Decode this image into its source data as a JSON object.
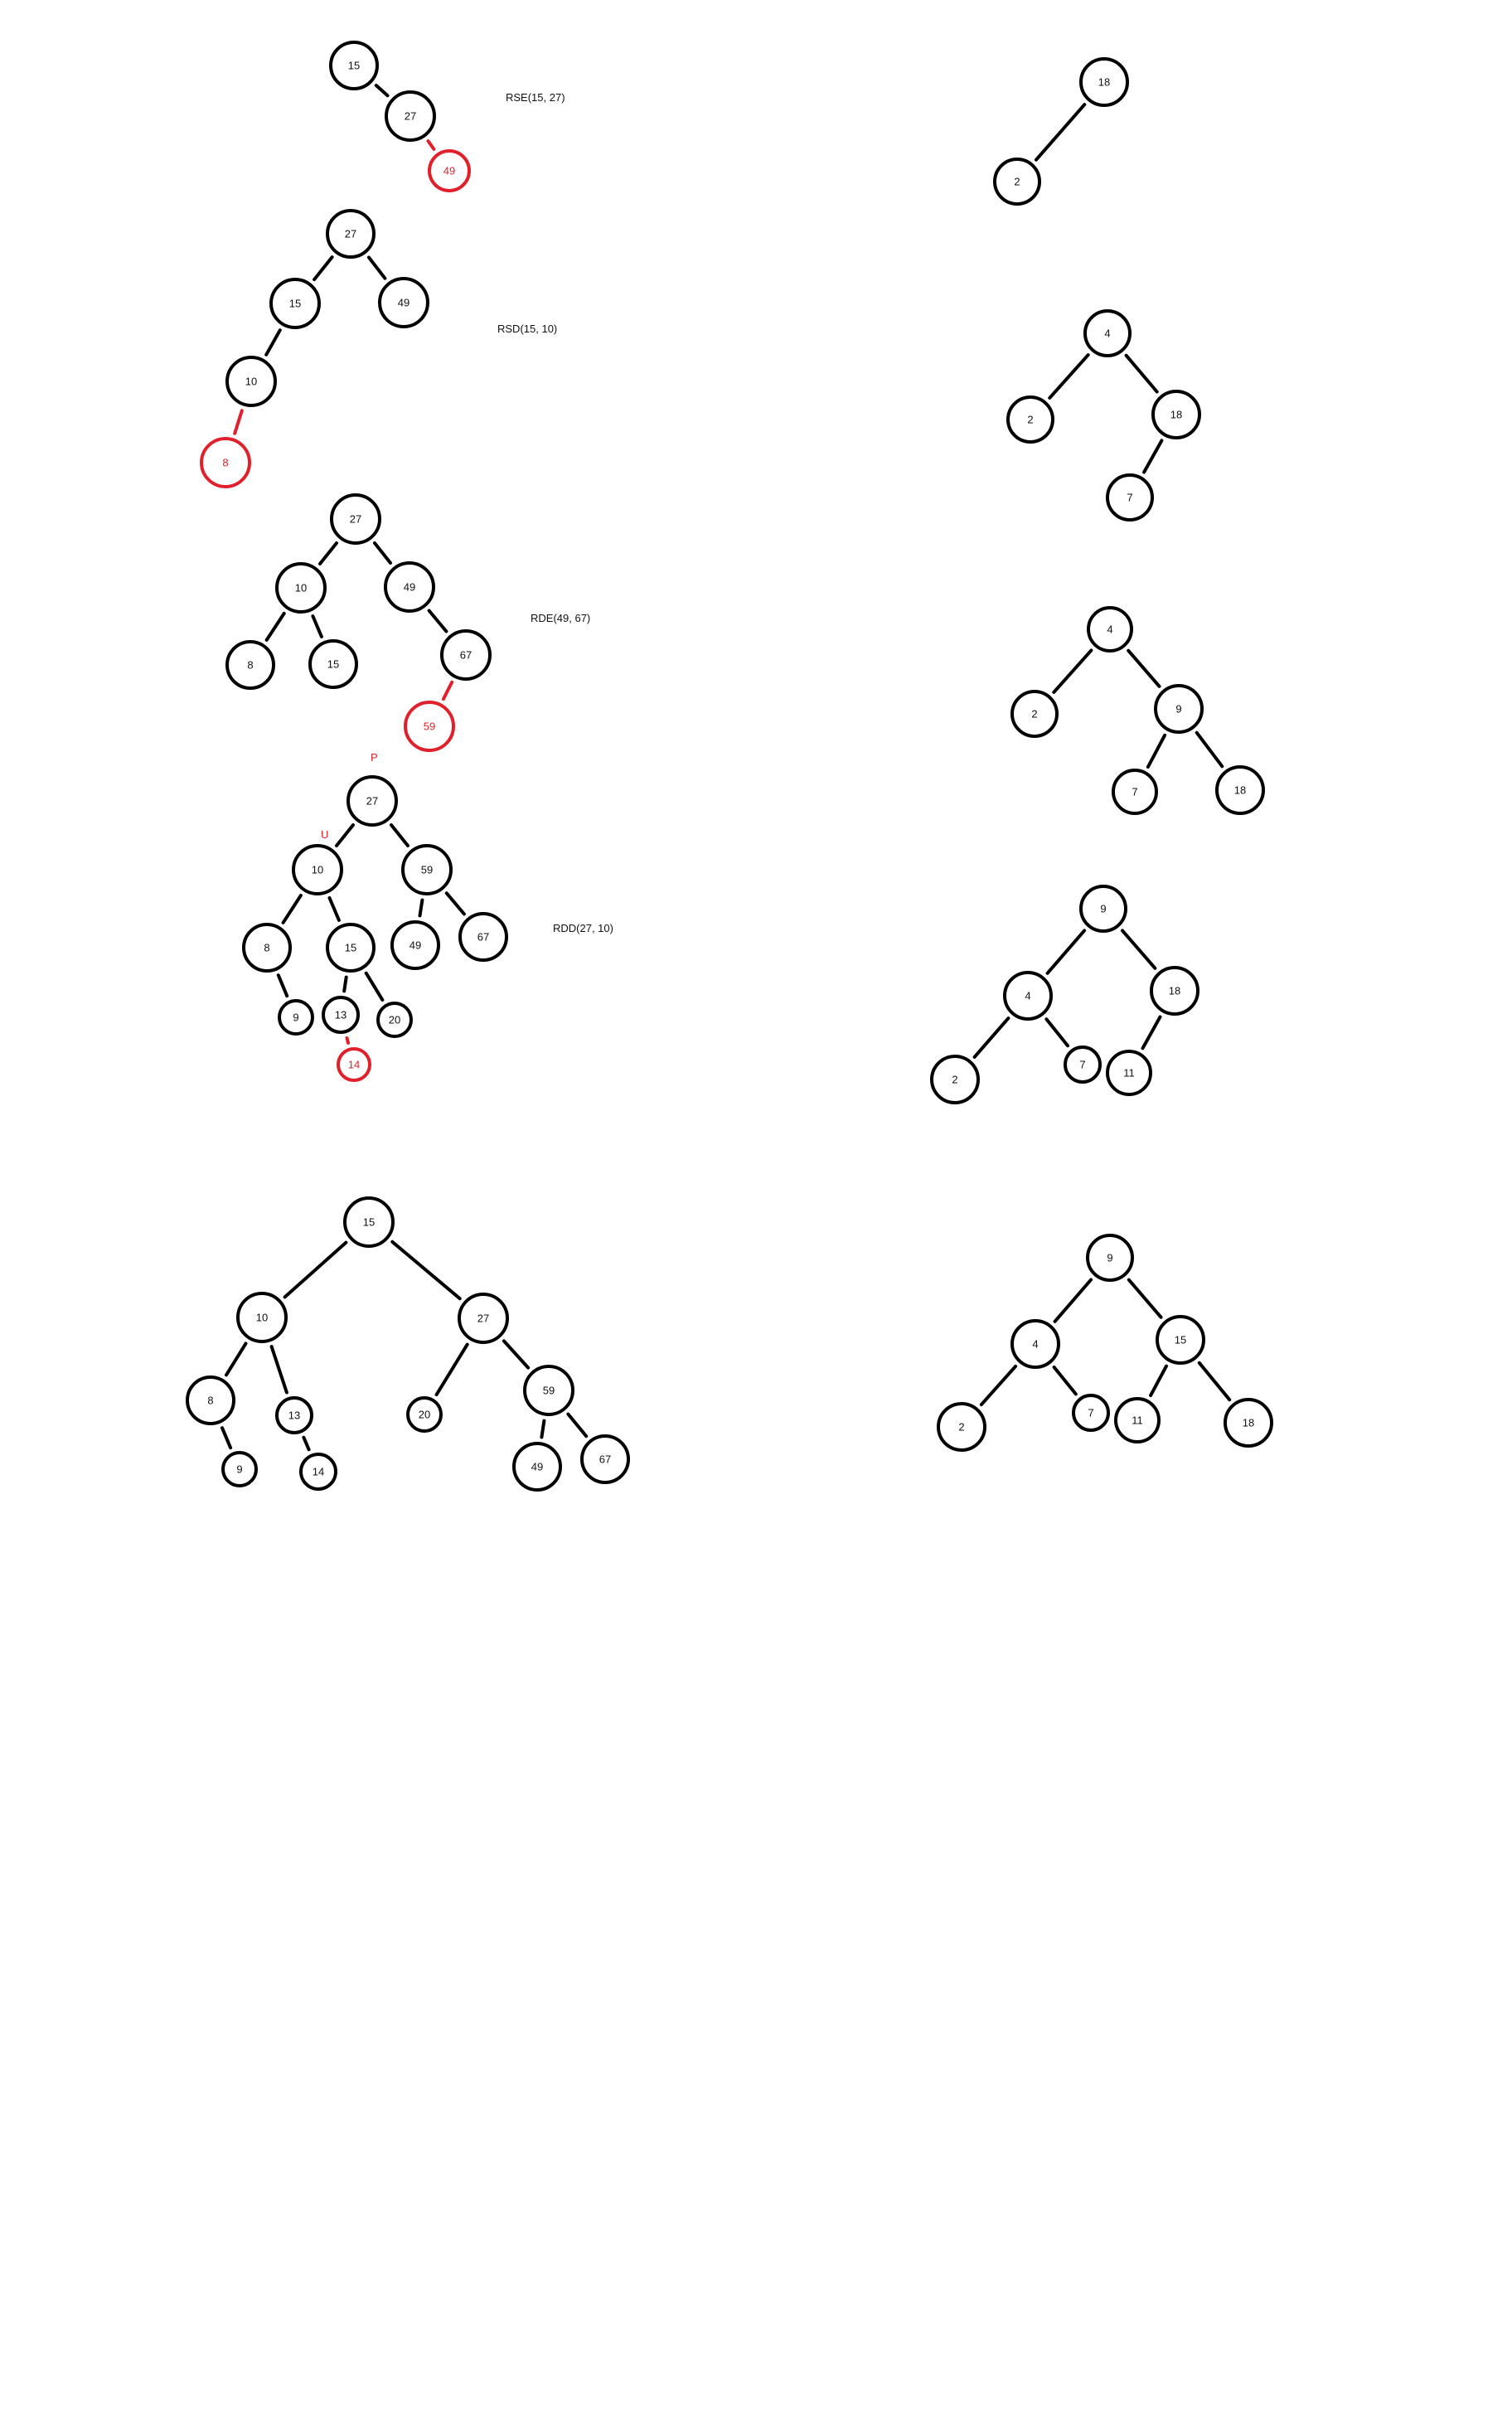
{
  "colors": {
    "ink": "#000000",
    "highlight": "#e0202a",
    "background": "#ffffff"
  },
  "trees": [
    {
      "id": "t1",
      "label": "RSE(15, 27)",
      "nodes": [
        {
          "id": "a",
          "value": "15"
        },
        {
          "id": "b",
          "value": "27"
        },
        {
          "id": "c",
          "value": "49",
          "highlight": true
        }
      ],
      "edges": [
        [
          "a",
          "b"
        ],
        [
          "b",
          "c"
        ]
      ]
    },
    {
      "id": "t2",
      "label": "RSD(15, 10)",
      "nodes": [
        {
          "id": "a",
          "value": "27"
        },
        {
          "id": "b",
          "value": "15"
        },
        {
          "id": "c",
          "value": "49"
        },
        {
          "id": "d",
          "value": "10"
        },
        {
          "id": "e",
          "value": "8",
          "highlight": true
        }
      ],
      "edges": [
        [
          "a",
          "b"
        ],
        [
          "a",
          "c"
        ],
        [
          "b",
          "d"
        ],
        [
          "d",
          "e"
        ]
      ]
    },
    {
      "id": "t3",
      "label": "RDE(49, 67)",
      "nodes": [
        {
          "id": "a",
          "value": "27"
        },
        {
          "id": "b",
          "value": "10"
        },
        {
          "id": "c",
          "value": "49"
        },
        {
          "id": "d",
          "value": "8"
        },
        {
          "id": "e",
          "value": "15"
        },
        {
          "id": "f",
          "value": "67"
        },
        {
          "id": "g",
          "value": "59",
          "highlight": true
        }
      ],
      "edges": [
        [
          "a",
          "b"
        ],
        [
          "a",
          "c"
        ],
        [
          "b",
          "d"
        ],
        [
          "b",
          "e"
        ],
        [
          "c",
          "f"
        ],
        [
          "f",
          "g"
        ]
      ]
    },
    {
      "id": "t4",
      "label": "RDD(27, 10)",
      "marks": [
        "P",
        "U"
      ],
      "nodes": [
        {
          "id": "a",
          "value": "27"
        },
        {
          "id": "b",
          "value": "10"
        },
        {
          "id": "c",
          "value": "59"
        },
        {
          "id": "d",
          "value": "8"
        },
        {
          "id": "e",
          "value": "15"
        },
        {
          "id": "f",
          "value": "49"
        },
        {
          "id": "g",
          "value": "67"
        },
        {
          "id": "h",
          "value": "9"
        },
        {
          "id": "i",
          "value": "13"
        },
        {
          "id": "j",
          "value": "20"
        },
        {
          "id": "k",
          "value": "14",
          "highlight": true
        }
      ],
      "edges": [
        [
          "a",
          "b"
        ],
        [
          "a",
          "c"
        ],
        [
          "b",
          "d"
        ],
        [
          "b",
          "e"
        ],
        [
          "c",
          "f"
        ],
        [
          "c",
          "g"
        ],
        [
          "d",
          "h"
        ],
        [
          "e",
          "i"
        ],
        [
          "e",
          "j"
        ],
        [
          "i",
          "k"
        ]
      ]
    },
    {
      "id": "t5",
      "label": "",
      "nodes": [
        {
          "id": "a",
          "value": "15"
        },
        {
          "id": "b",
          "value": "10"
        },
        {
          "id": "c",
          "value": "27"
        },
        {
          "id": "d",
          "value": "8"
        },
        {
          "id": "e",
          "value": "13"
        },
        {
          "id": "f",
          "value": "20"
        },
        {
          "id": "g",
          "value": "59"
        },
        {
          "id": "h",
          "value": "9"
        },
        {
          "id": "i",
          "value": "14"
        },
        {
          "id": "j",
          "value": "49"
        },
        {
          "id": "k",
          "value": "67"
        }
      ],
      "edges": [
        [
          "a",
          "b"
        ],
        [
          "a",
          "c"
        ],
        [
          "b",
          "d"
        ],
        [
          "b",
          "e"
        ],
        [
          "c",
          "f"
        ],
        [
          "c",
          "g"
        ],
        [
          "d",
          "h"
        ],
        [
          "e",
          "i"
        ],
        [
          "g",
          "j"
        ],
        [
          "g",
          "k"
        ]
      ]
    },
    {
      "id": "r1",
      "label": "",
      "nodes": [
        {
          "id": "a",
          "value": "18"
        },
        {
          "id": "b",
          "value": "2"
        }
      ],
      "edges": [
        [
          "a",
          "b"
        ]
      ]
    },
    {
      "id": "r2",
      "label": "",
      "nodes": [
        {
          "id": "a",
          "value": "4"
        },
        {
          "id": "b",
          "value": "2"
        },
        {
          "id": "c",
          "value": "18"
        },
        {
          "id": "d",
          "value": "7"
        }
      ],
      "edges": [
        [
          "a",
          "b"
        ],
        [
          "a",
          "c"
        ],
        [
          "c",
          "d"
        ]
      ]
    },
    {
      "id": "r3",
      "label": "",
      "nodes": [
        {
          "id": "a",
          "value": "4"
        },
        {
          "id": "b",
          "value": "2"
        },
        {
          "id": "c",
          "value": "9"
        },
        {
          "id": "d",
          "value": "7"
        },
        {
          "id": "e",
          "value": "18"
        }
      ],
      "edges": [
        [
          "a",
          "b"
        ],
        [
          "a",
          "c"
        ],
        [
          "c",
          "d"
        ],
        [
          "c",
          "e"
        ]
      ]
    },
    {
      "id": "r4",
      "label": "",
      "nodes": [
        {
          "id": "a",
          "value": "9"
        },
        {
          "id": "b",
          "value": "4"
        },
        {
          "id": "c",
          "value": "18"
        },
        {
          "id": "d",
          "value": "2"
        },
        {
          "id": "e",
          "value": "7"
        },
        {
          "id": "f",
          "value": "11"
        }
      ],
      "edges": [
        [
          "a",
          "b"
        ],
        [
          "a",
          "c"
        ],
        [
          "b",
          "d"
        ],
        [
          "b",
          "e"
        ],
        [
          "c",
          "f"
        ]
      ]
    },
    {
      "id": "r5",
      "label": "",
      "nodes": [
        {
          "id": "a",
          "value": "9"
        },
        {
          "id": "b",
          "value": "4"
        },
        {
          "id": "c",
          "value": "15"
        },
        {
          "id": "d",
          "value": "2"
        },
        {
          "id": "e",
          "value": "7"
        },
        {
          "id": "f",
          "value": "11"
        },
        {
          "id": "g",
          "value": "18"
        }
      ],
      "edges": [
        [
          "a",
          "b"
        ],
        [
          "a",
          "c"
        ],
        [
          "b",
          "d"
        ],
        [
          "b",
          "e"
        ],
        [
          "c",
          "f"
        ],
        [
          "c",
          "g"
        ]
      ]
    }
  ]
}
